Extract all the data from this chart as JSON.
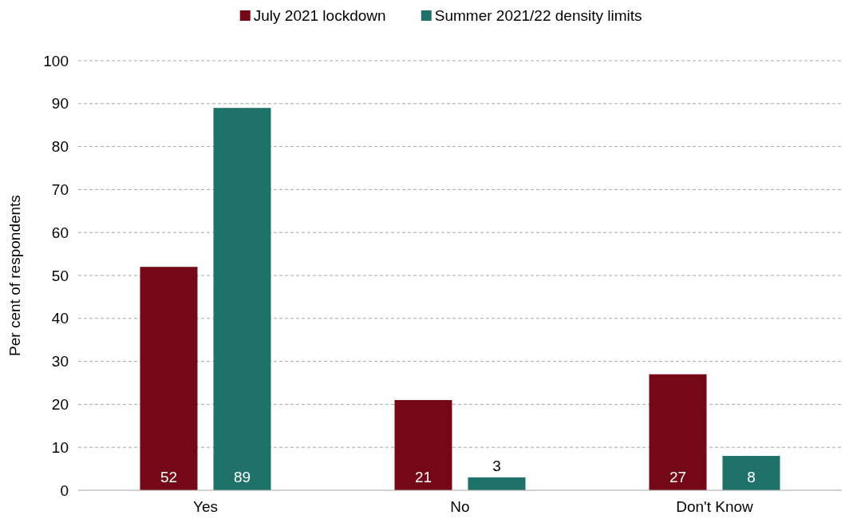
{
  "chart_data": {
    "type": "bar",
    "ylabel": "Per cent of respondents",
    "categories": [
      "Yes",
      "No",
      "Don't Know"
    ],
    "series": [
      {
        "name": "July 2021 lockdown",
        "color": "#750816",
        "values": [
          52,
          21,
          27
        ]
      },
      {
        "name": "Summer 2021/22 density limits",
        "color": "#1f726a",
        "values": [
          89,
          3,
          8
        ]
      }
    ],
    "ylim": [
      0,
      100
    ],
    "yticks": [
      0,
      10,
      20,
      30,
      40,
      50,
      60,
      70,
      80,
      90,
      100
    ],
    "grid": "y",
    "legend": "top",
    "data_labels": true
  }
}
